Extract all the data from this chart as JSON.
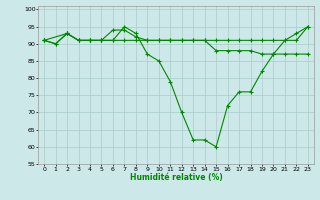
{
  "xlabel": "Humidité relative (%)",
  "bg_color": "#cce8e8",
  "grid_color": "#aacccc",
  "line_color": "#008800",
  "xlim": [
    -0.5,
    23.5
  ],
  "ylim": [
    55,
    101
  ],
  "xticks": [
    0,
    1,
    2,
    3,
    4,
    5,
    6,
    7,
    8,
    9,
    10,
    11,
    12,
    13,
    14,
    15,
    16,
    17,
    18,
    19,
    20,
    21,
    22,
    23
  ],
  "yticks": [
    55,
    60,
    65,
    70,
    75,
    80,
    85,
    90,
    95,
    100
  ],
  "series": [
    {
      "x": [
        0,
        1,
        2,
        3,
        4,
        5,
        6,
        7,
        8,
        9,
        10,
        11,
        12,
        13,
        14,
        15,
        16,
        17,
        18,
        19,
        20,
        21,
        22,
        23
      ],
      "y": [
        91,
        90,
        93,
        91,
        91,
        91,
        91,
        95,
        93,
        87,
        85,
        79,
        70,
        62,
        62,
        60,
        72,
        76,
        76,
        82,
        87,
        91,
        93,
        95
      ]
    },
    {
      "x": [
        0,
        1,
        2,
        3,
        4,
        5,
        6,
        7,
        8,
        9,
        10,
        11,
        12,
        13,
        14,
        15,
        16,
        17,
        18,
        19,
        20,
        21,
        22,
        23
      ],
      "y": [
        91,
        90,
        93,
        91,
        91,
        91,
        94,
        94,
        92,
        91,
        91,
        91,
        91,
        91,
        91,
        88,
        88,
        88,
        88,
        87,
        87,
        87,
        87,
        87
      ]
    },
    {
      "x": [
        0,
        2,
        3,
        4,
        5,
        6,
        7,
        8,
        9,
        10,
        11,
        12,
        13,
        14,
        15,
        16,
        17,
        18,
        19,
        20,
        21,
        22,
        23
      ],
      "y": [
        91,
        93,
        91,
        91,
        91,
        91,
        91,
        91,
        91,
        91,
        91,
        91,
        91,
        91,
        91,
        91,
        91,
        91,
        91,
        91,
        91,
        91,
        95
      ]
    }
  ]
}
